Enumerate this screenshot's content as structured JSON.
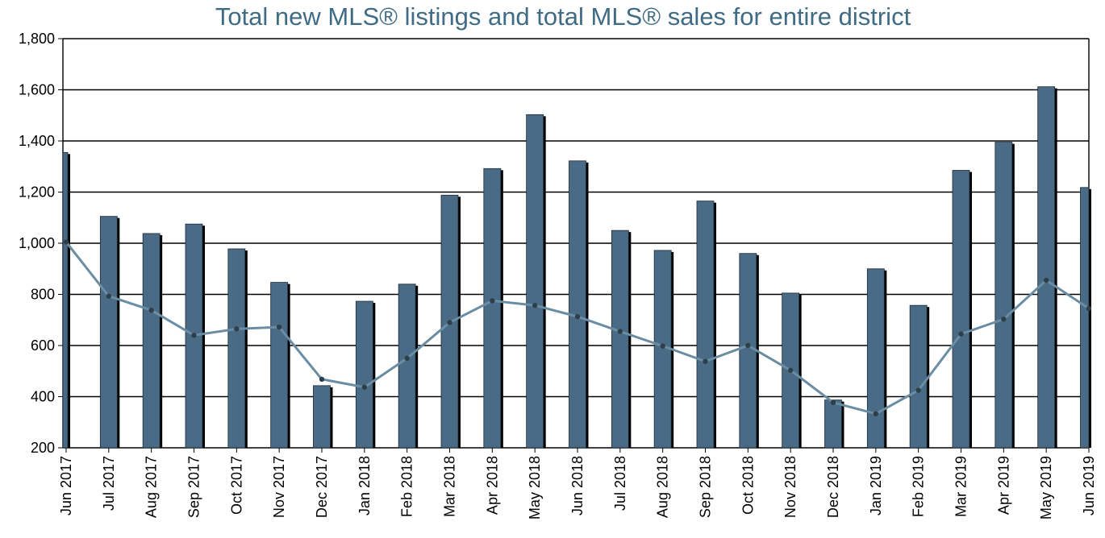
{
  "chart_data": {
    "type": "bar",
    "title": "Total new MLS® listings and total MLS® sales for entire district",
    "xlabel": "",
    "ylabel": "",
    "ylim": [
      200,
      1800
    ],
    "yticks": [
      200,
      400,
      600,
      800,
      1000,
      1200,
      1400,
      1600,
      1800
    ],
    "ytick_labels": [
      "200",
      "400",
      "600",
      "800",
      "1,000",
      "1,200",
      "1,400",
      "1,600",
      "1,800"
    ],
    "grid": "horizontal",
    "categories": [
      "Jun 2017",
      "Jul 2017",
      "Aug 2017",
      "Sep 2017",
      "Oct 2017",
      "Nov 2017",
      "Dec 2017",
      "Jan 2018",
      "Feb 2018",
      "Mar 2018",
      "Apr 2018",
      "May 2018",
      "Jun 2018",
      "Jul 2018",
      "Aug 2018",
      "Sep 2018",
      "Oct 2018",
      "Nov 2018",
      "Dec 2018",
      "Jan 2019",
      "Feb 2019",
      "Mar 2019",
      "Apr 2019",
      "May 2019",
      "Jun 2019"
    ],
    "series": [
      {
        "kind": "bar",
        "color": "#4a6b85",
        "values": [
          1355,
          1105,
          1038,
          1075,
          978,
          847,
          443,
          773,
          840,
          1188,
          1292,
          1503,
          1322,
          1050,
          972,
          1165,
          960,
          805,
          387,
          900,
          757,
          1285,
          1395,
          1612,
          1218
        ]
      },
      {
        "kind": "line",
        "color": "#6b8da3",
        "values": [
          1005,
          793,
          738,
          640,
          665,
          672,
          468,
          437,
          550,
          690,
          775,
          757,
          713,
          655,
          598,
          538,
          600,
          503,
          377,
          333,
          425,
          645,
          703,
          855,
          745
        ]
      }
    ]
  },
  "colors": {
    "title": "#3f6c84",
    "bar": "#4a6b85",
    "line": "#6b8da3",
    "marker": "#2f3f4a",
    "grid": "#000000"
  }
}
